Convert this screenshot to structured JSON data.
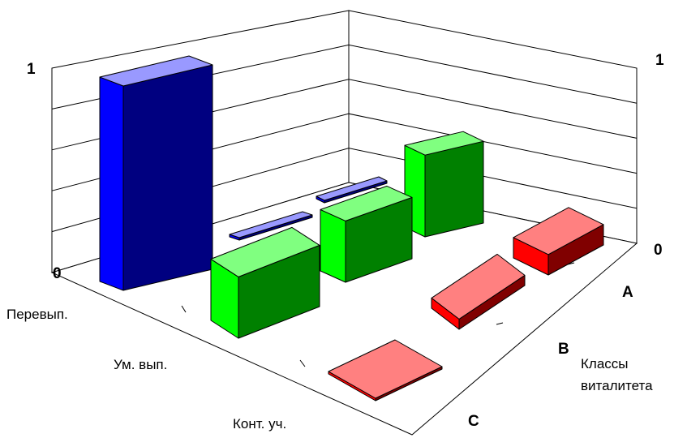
{
  "chart_data": {
    "type": "bar3d",
    "title": "",
    "x_categories": [
      "Перевып.",
      "Ум. вып.",
      "Конт. уч."
    ],
    "z_categories": [
      "A",
      "B",
      "C"
    ],
    "zlabel": [
      "Классы",
      "виталитета"
    ],
    "y_tick_left": [
      "1",
      "0"
    ],
    "y_tick_right": [
      "1",
      "0"
    ],
    "ylim": [
      0,
      1
    ],
    "grid": true,
    "values": [
      [
        1.0,
        0.0,
        0.0
      ],
      [
        0.3,
        0.3,
        0.4
      ],
      [
        0.0,
        0.05,
        0.1
      ]
    ],
    "series_colors": {
      "A": {
        "top": "#9999ff",
        "front": "#0000ff",
        "side": "#000080"
      },
      "B": {
        "top": "#80ff80",
        "front": "#00ff00",
        "side": "#008000"
      },
      "C": {
        "top": "#ff8080",
        "front": "#ff0000",
        "side": "#800000"
      }
    }
  }
}
